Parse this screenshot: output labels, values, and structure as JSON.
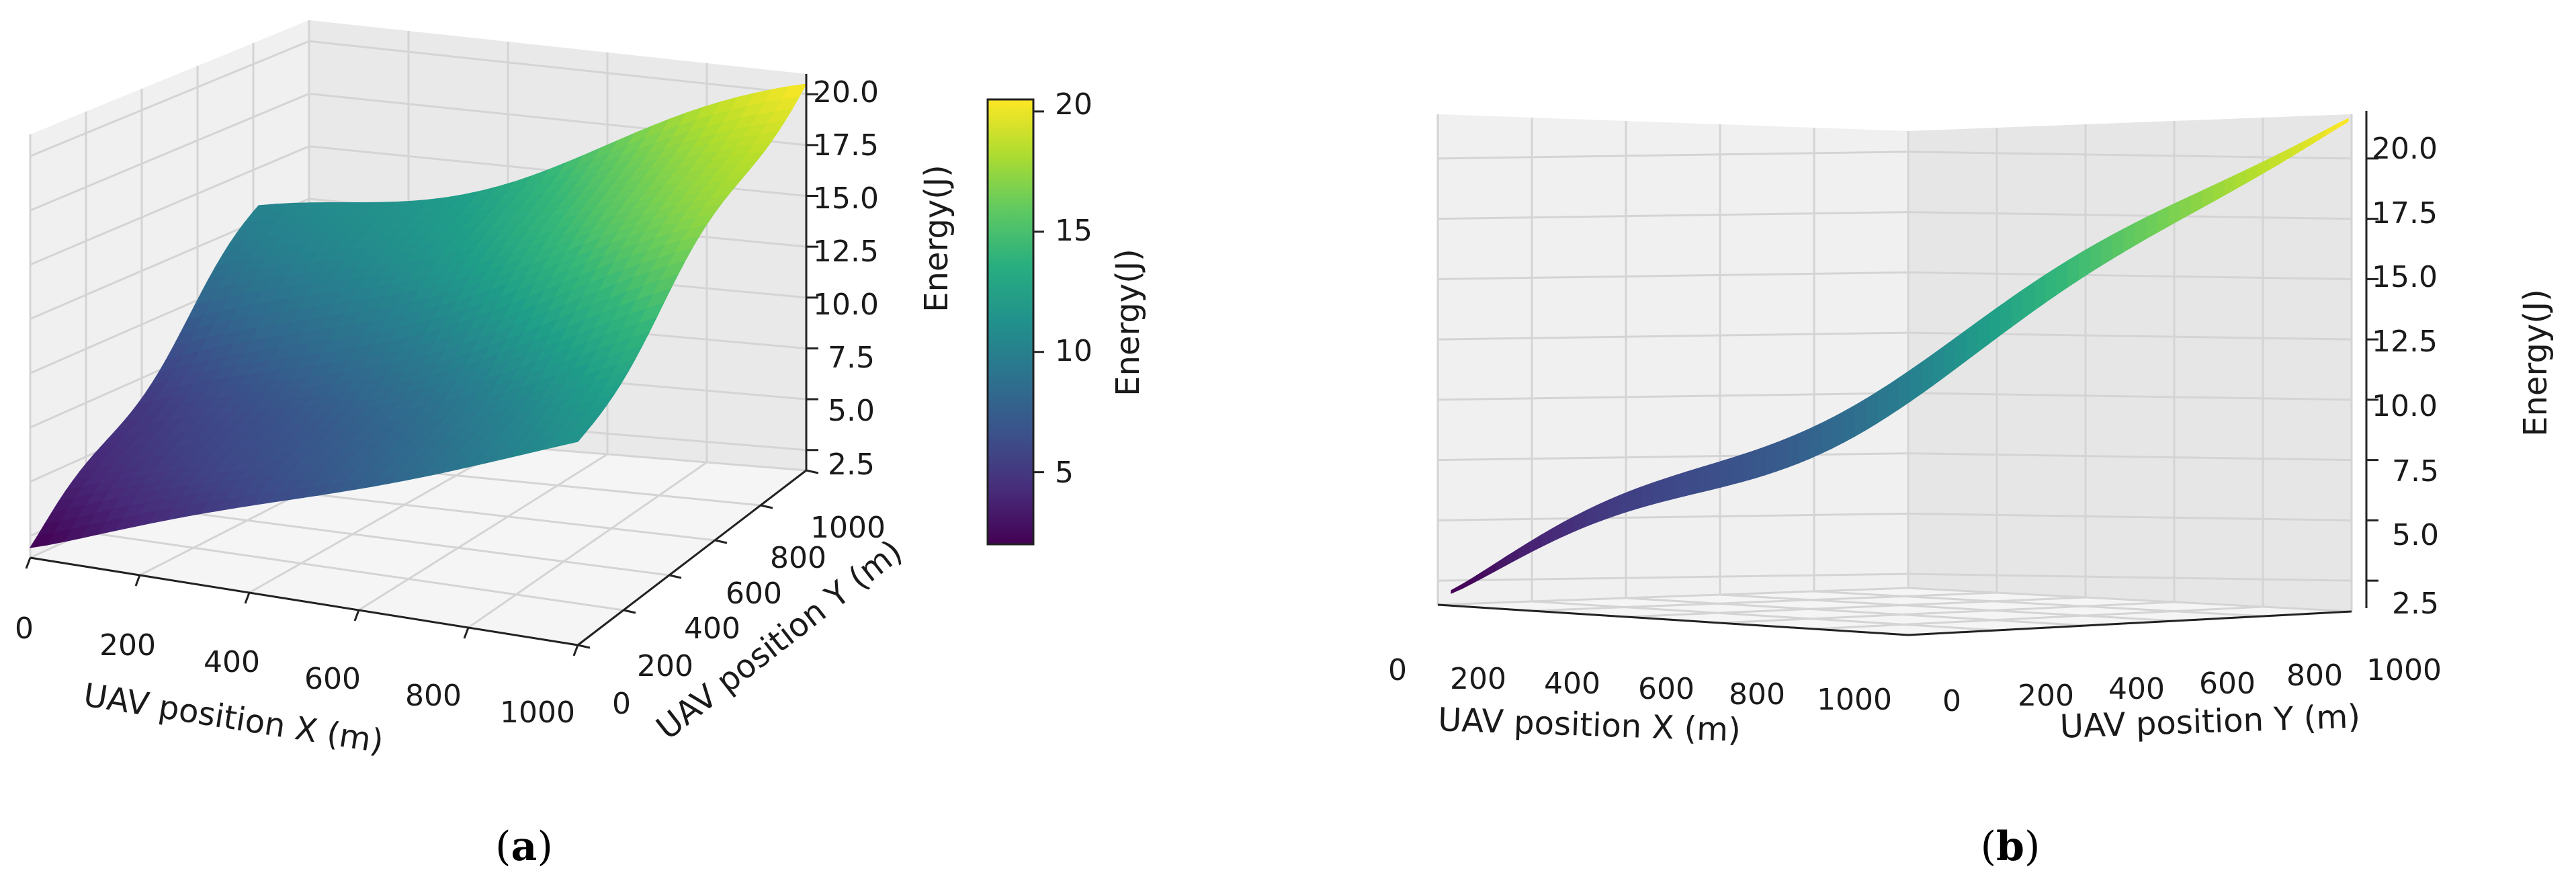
{
  "chart_data": [
    {
      "panel": "(a)",
      "panel_letter": "a",
      "type": "surface",
      "xlabel": "UAV position X (m)",
      "ylabel": "UAV position Y (m)",
      "zlabel": "Energy(J)",
      "x_ticks": [
        "0",
        "200",
        "400",
        "600",
        "800",
        "1000"
      ],
      "y_ticks": [
        "0",
        "200",
        "400",
        "600",
        "800",
        "1000"
      ],
      "z_ticks": [
        "2.5",
        "5.0",
        "7.5",
        "10.0",
        "12.5",
        "15.0",
        "17.5",
        "20.0"
      ],
      "xlim": [
        0,
        1000
      ],
      "ylim": [
        0,
        1000
      ],
      "zlim": [
        1.5,
        21
      ],
      "colormap": "viridis",
      "colorbar": {
        "label": "Energy(J)",
        "ticks": [
          "5",
          "10",
          "15",
          "20"
        ],
        "range": [
          2,
          20.5
        ]
      },
      "energy_min": 2,
      "energy_max": 20.5
    },
    {
      "panel": "(b)",
      "panel_letter": "b",
      "type": "surface",
      "xlabel": "UAV position X (m)",
      "ylabel": "UAV position Y (m)",
      "zlabel": "Energy(J)",
      "x_ticks": [
        "0",
        "200",
        "400",
        "600",
        "800",
        "1000"
      ],
      "y_ticks": [
        "0",
        "200",
        "400",
        "600",
        "800",
        "1000"
      ],
      "z_ticks": [
        "2.5",
        "5.0",
        "7.5",
        "10.0",
        "12.5",
        "15.0",
        "17.5",
        "20.0"
      ],
      "xlim": [
        0,
        1000
      ],
      "ylim": [
        0,
        1000
      ],
      "zlim": [
        1.5,
        21
      ],
      "colormap": "viridis",
      "energy_min": 2,
      "energy_max": 20.5
    }
  ]
}
